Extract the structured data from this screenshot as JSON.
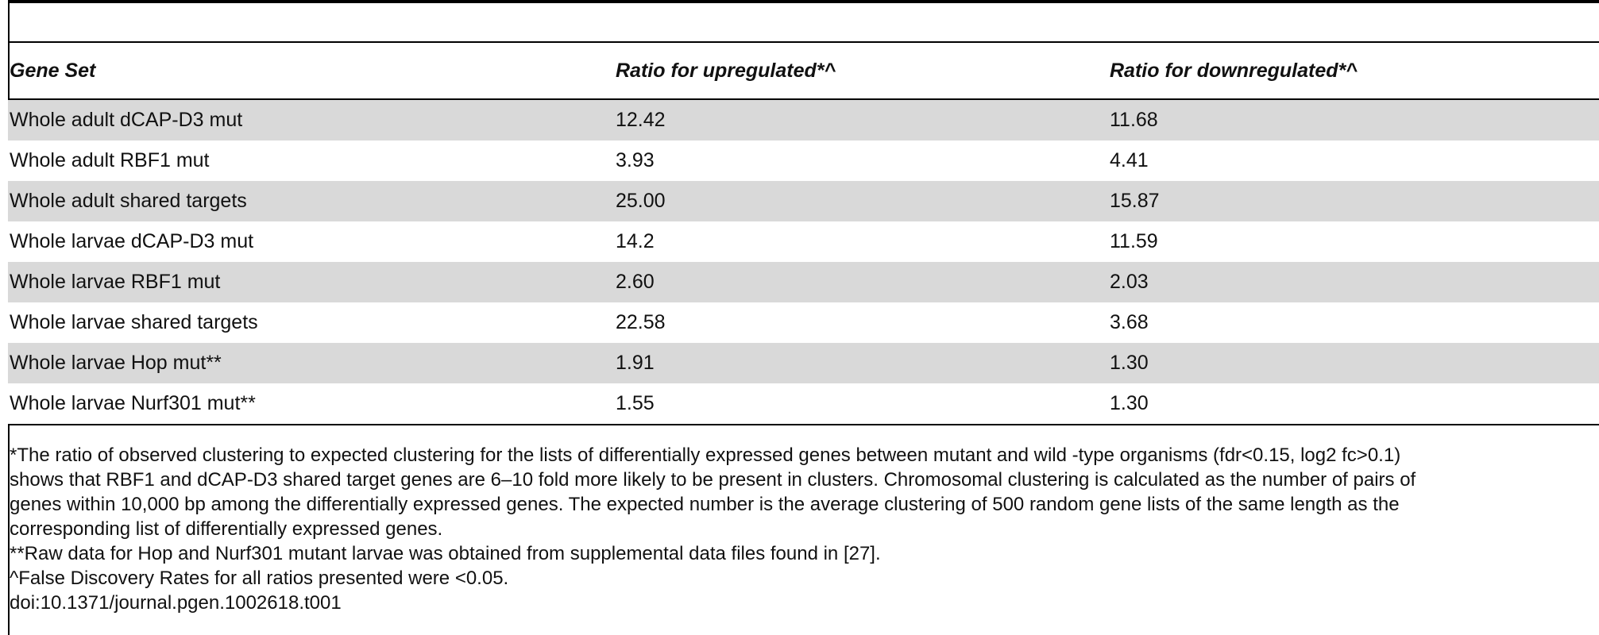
{
  "table": {
    "columns": [
      "Gene Set",
      "Ratio for upregulated*^",
      "Ratio for downregulated*^"
    ],
    "rows": [
      [
        "Whole adult dCAP-D3 mut",
        "12.42",
        "11.68"
      ],
      [
        "Whole adult RBF1 mut",
        "3.93",
        "4.41"
      ],
      [
        "Whole adult shared targets",
        "25.00",
        "15.87"
      ],
      [
        "Whole larvae dCAP-D3 mut",
        "14.2",
        "11.59"
      ],
      [
        "Whole larvae RBF1 mut",
        "2.60",
        "2.03"
      ],
      [
        "Whole larvae shared targets",
        "22.58",
        "3.68"
      ],
      [
        "Whole larvae Hop mut**",
        "1.91",
        "1.30"
      ],
      [
        "Whole larvae Nurf301 mut**",
        "1.55",
        "1.30"
      ]
    ]
  },
  "notes": {
    "line1": "*The ratio of observed clustering to expected clustering for the lists of differentially expressed genes between mutant and wild -type organisms (fdr<0.15, log2 fc>0.1)",
    "line2": "shows that RBF1 and dCAP-D3 shared target genes are 6–10 fold more likely to be present in clusters. Chromosomal clustering is calculated as the number of pairs of",
    "line3": "genes within 10,000 bp among the differentially expressed genes. The expected number is the average clustering of 500 random gene lists of the same length as the",
    "line4": "corresponding list of differentially expressed genes.",
    "line5": "**Raw data for Hop and Nurf301 mutant larvae was obtained from supplemental data files found in [27].",
    "line6": "^False Discovery Rates for all ratios presented were <0.05.",
    "doi": "doi:10.1371/journal.pgen.1002618.t001"
  }
}
